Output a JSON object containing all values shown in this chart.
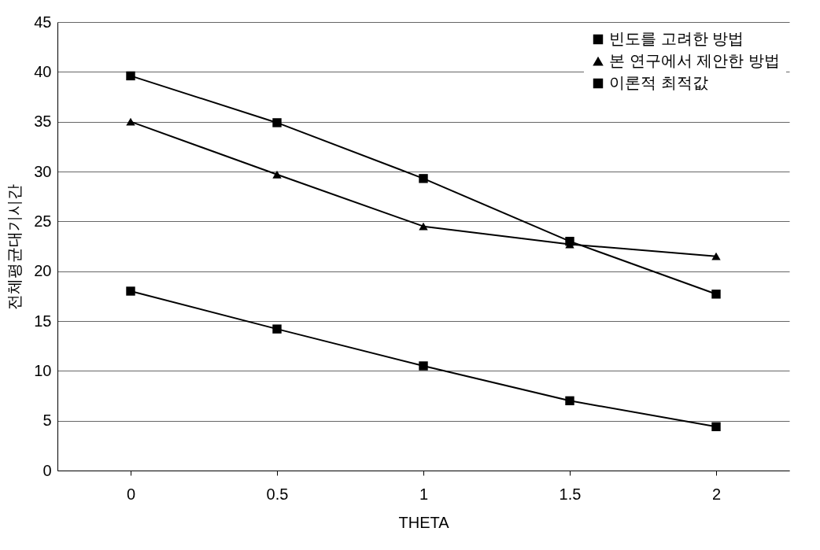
{
  "chart_data": {
    "type": "line",
    "xlabel": "THETA",
    "ylabel": "전체평균대기시간",
    "categories": [
      "0",
      "0.5",
      "1",
      "1.5",
      "2"
    ],
    "series": [
      {
        "name": "빈도를 고려한 방법",
        "color": "#000000",
        "marker": "square",
        "values": [
          39.6,
          34.9,
          29.3,
          23.0,
          17.7
        ]
      },
      {
        "name": "본 연구에서 제안한 방법",
        "color": "#000000",
        "marker": "triangle",
        "values": [
          35.0,
          29.7,
          24.5,
          22.7,
          21.5
        ]
      },
      {
        "name": "이론적 최적값",
        "color": "#000000",
        "marker": "square",
        "values": [
          18.0,
          14.2,
          10.5,
          7.0,
          4.4
        ]
      }
    ],
    "ylim": [
      0,
      45
    ],
    "yticks": [
      0,
      5,
      10,
      15,
      20,
      25,
      30,
      35,
      40,
      45
    ],
    "grid": "y",
    "legend": "top right",
    "line_style": "solid"
  }
}
